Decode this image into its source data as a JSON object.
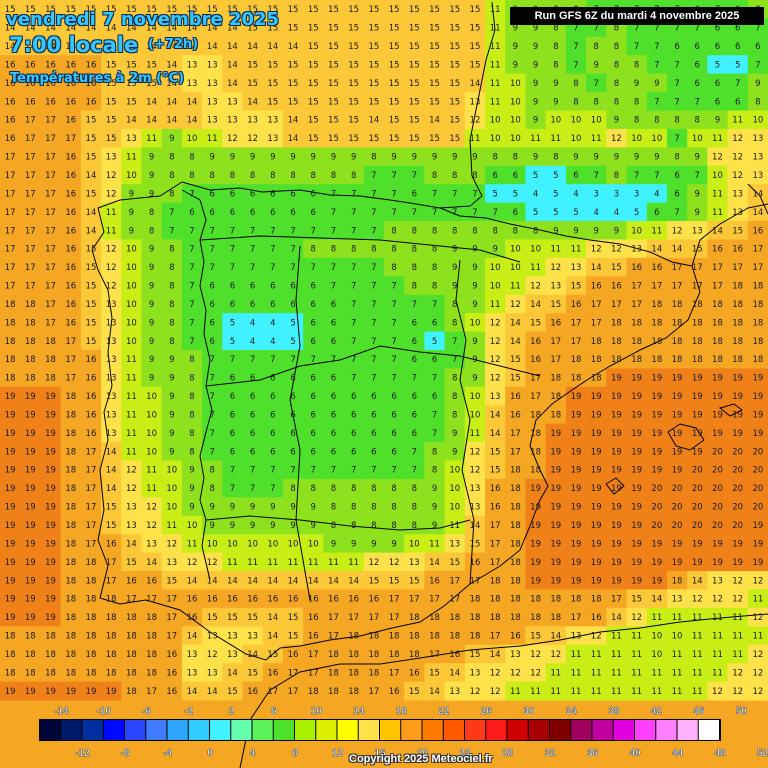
{
  "header": {
    "date": "vendredi 7 novembre 2025",
    "time": "7:00 locale",
    "offset": "(+72h)",
    "variable": "Températures à 2m (°C)"
  },
  "run_label": "Run GFS 6Z du mardi 4 novembre 2025",
  "copyright": "Copyright 2025 Meteociel.fr",
  "legend": {
    "top_labels": [
      "-14",
      "-10",
      "-6",
      "-2",
      "2",
      "6",
      "10",
      "14",
      "18",
      "22",
      "26",
      "30",
      "34",
      "38",
      "42",
      "46",
      "50"
    ],
    "bottom_labels": [
      "-12",
      "-8",
      "-4",
      "0",
      "4",
      "8",
      "12",
      "16",
      "20",
      "24",
      "28",
      "32",
      "36",
      "40",
      "44",
      "48",
      "52"
    ],
    "colors": [
      "#00063a",
      "#001a6b",
      "#00309f",
      "#0009ff",
      "#2b47ff",
      "#3f7cff",
      "#2fa6ff",
      "#30ccff",
      "#40f2ff",
      "#66ffb0",
      "#5bf25a",
      "#4fe02c",
      "#a8f000",
      "#dcf000",
      "#ffff00",
      "#ffe24a",
      "#ffc400",
      "#ff9c1a",
      "#ff7a00",
      "#ff5a00",
      "#ff3a1a",
      "#ff1a1a",
      "#d00000",
      "#a80000",
      "#800000",
      "#a00060",
      "#c000a0",
      "#e000e0",
      "#ff40ff",
      "#ff80ff",
      "#ffb0ff",
      "#ffffff"
    ]
  },
  "map": {
    "grid_cols": 38,
    "grid_rows": 38,
    "palette": {
      "sea_warm": "#f08018",
      "sea_mild": "#f5a623",
      "sea_cool": "#fcc838",
      "coast": "#ffe24a",
      "land_cold": "#4fe02c",
      "land_cool": "#8ee21d",
      "land_mild": "#c9ee16",
      "cold_spot": "#40f2ff",
      "border": "#000000"
    },
    "temperature_rows": [
      "15 15 15 15 15 15 15 15 15 15 15 15 15 15 15 15 15 15 15 15 15 15 15 15 11 9 9 8 8 7 7 7 7 7 6 7 6 8",
      "14 14 14 14 14 14 14 14 14 14 14 14 15 15 15 15 15 15 15 15 15 15 15 15 11 9 9 8 7 7 8 7 7 7 7 6 6 7",
      "14 14 14 14 14 14 14 14 14 14 14 14 14 14 14 15 15 15 15 15 15 15 15 15 11 9 9 8 7 8 8 7 7 6 6 6 6 6",
      "16 16 16 16 16 15 15 15 14 13 13 14 15 15 15 15 15 15 15 15 15 15 15 15 11 9 9 8 7 9 8 8 7 7 6 5 5 7",
      "16 16 16 16 16 15 15 15 14 13 13 14 15 15 15 15 15 15 15 15 15 15 15 14 11 10 9 9 8 7 8 9 9 7 6 6 7 9",
      "16 16 16 16 16 15 15 14 14 14 13 13 14 15 15 15 15 15 15 15 15 15 15 13 11 10 9 9 8 8 8 8 7 7 7 6 6 8",
      "16 17 17 16 15 15 14 14 14 14 13 13 13 13 14 15 15 15 14 15 15 14 15 12 10 10 9 10 10 10 9 8 8 8 8 9 11 10",
      "16 17 17 17 15 15 13 11 9 10 11 12 12 13 14 15 15 15 15 15 15 15 15 11 10 10 11 11 10 11 12 10 10 7 10 11 12 13",
      "17 17 17 16 15 13 11 9 8 8 9 9 9 9 9 9 9 9 8 9 9 9 9 9 8 8 9 8 9 9 9 9 9 8 9 12 12 13",
      "17 17 17 16 14 12 10 9 8 8 8 8 8 8 8 8 8 8 7 7 7 8 8 8 6 6 5 5 6 7 8 7 7 6 7 10 12 13",
      "17 17 17 16 15 12 9 9 8 7 6 6 6 6 6 6 7 7 7 7 6 7 7 7 5 5 4 5 4 3 3 3 4 6 9 11 13 14",
      "17 17 17 16 14 11 9 8 7 6 6 6 6 6 6 6 7 7 7 7 7 7 7 7 7 6 5 5 5 4 4 5 6 7 9 11 13 14",
      "17 17 17 16 14 11 9 8 7 7 7 7 7 7 7 7 7 7 7 8 8 8 8 8 8 8 8 9 9 9 9 10 11 12 13 14 15 16",
      "17 17 17 16 15 12 10 9 8 7 7 7 7 7 7 8 8 8 8 8 8 8 9 9 9 10 10 11 11 12 12 13 14 14 15 16 16 17",
      "17 17 17 16 15 12 10 9 8 7 7 7 7 7 7 7 7 7 7 8 8 8 9 9 10 10 11 12 13 14 15 16 16 17 17 17 17 17",
      "17 17 17 16 15 12 10 9 8 7 6 6 6 6 6 6 7 7 7 7 8 8 9 9 10 11 12 13 15 16 16 17 17 17 17 17 18 18",
      "18 18 17 16 15 13 10 9 8 7 6 6 6 6 6 6 6 7 7 7 7 7 8 9 11 12 14 15 16 17 17 17 18 18 18 18 18 18",
      "18 18 17 16 15 13 10 9 8 7 6 5 4 4 5 6 6 7 7 7 6 6 8 10 12 14 15 16 17 17 18 18 18 18 18 18 18 18",
      "18 18 18 17 15 13 10 9 8 7 6 5 4 4 5 6 6 7 7 7 6 5 7 9 12 14 16 17 17 18 18 18 18 18 18 18 18 18",
      "18 18 18 17 16 13 11 9 9 8 7 7 7 7 7 7 7 7 7 7 6 6 7 9 12 15 16 17 18 18 18 18 18 18 18 18 18 18",
      "18 18 18 17 16 13 11 9 9 8 7 6 6 6 6 6 6 7 7 7 7 7 8 9 12 15 17 18 18 18 19 19 19 19 19 19 19 19",
      "19 19 19 18 16 13 11 10 9 8 7 6 6 6 6 6 6 6 6 6 6 6 8 10 13 16 17 18 19 19 19 19 19 19 19 19 19 19",
      "19 19 19 18 16 13 11 10 9 8 7 6 6 6 6 6 6 6 6 6 6 7 8 10 14 16 18 18 19 19 19 19 19 19 19 19 19 19",
      "19 19 19 18 16 13 11 10 9 8 7 6 6 6 6 6 6 6 6 6 6 7 9 11 14 17 18 19 19 19 19 19 19 19 19 19 19 19",
      "19 19 19 18 17 14 11 10 9 8 7 6 6 6 6 6 6 6 6 6 7 8 9 12 15 17 18 19 19 19 19 19 19 19 19 20 20 20",
      "19 19 19 18 17 14 12 11 10 9 8 7 7 7 7 7 7 7 7 7 7 8 10 12 15 18 18 19 19 19 19 19 19 19 20 20 20 20",
      "19 19 19 18 17 14 12 11 10 9 8 7 7 7 8 8 8 8 8 8 8 9 10 13 16 18 19 19 19 19 19 19 20 20 20 20 20 20",
      "19 19 19 18 17 15 13 12 10 9 9 9 9 9 9 9 8 8 8 8 8 9 10 13 16 18 19 19 19 19 19 19 20 20 20 20 20 20",
      "19 19 19 18 17 15 13 12 11 10 9 9 9 9 9 9 8 8 8 8 8 9 11 14 17 18 19 19 19 19 19 19 20 20 20 20 20 19",
      "19 19 19 18 17 16 14 13 12 11 10 10 10 10 10 10 9 9 9 9 10 11 13 15 17 18 19 19 19 19 19 19 19 19 19 19 19 19",
      "19 19 19 18 18 17 15 14 13 12 12 11 11 11 11 11 11 11 12 12 13 14 15 16 17 18 19 19 19 19 19 19 19 19 19 19 19 19",
      "19 19 19 18 18 17 16 16 15 14 14 14 14 14 14 14 14 14 15 15 15 16 17 17 18 18 19 19 19 19 19 19 19 18 14 13 12 12",
      "19 19 19 18 18 18 17 17 17 16 16 16 16 16 16 16 16 16 16 17 17 17 17 18 18 18 18 18 18 18 17 15 14 13 12 12 12 11",
      "19 19 19 18 18 18 18 18 17 16 15 15 15 14 15 16 17 17 17 17 18 18 18 18 18 18 18 18 17 16 14 12 11 11 11 11 11 12",
      "18 18 18 18 18 18 18 18 17 14 13 13 13 14 15 16 17 18 18 18 18 18 18 18 17 16 15 14 13 12 11 11 10 10 11 11 11 11",
      "18 18 18 18 18 18 18 18 16 13 12 13 14 15 16 17 18 18 18 18 18 17 16 15 14 13 12 12 11 11 11 11 10 11 11 11 11 12",
      "18 18 18 18 18 18 18 18 16 13 13 14 15 16 17 17 18 18 18 17 16 15 14 13 12 12 12 11 11 11 11 11 11 11 11 11 12 12",
      "19 19 19 19 19 19 18 17 16 14 14 15 16 17 17 18 18 18 17 16 15 14 13 12 12 11 11 11 11 11 11 11 11 11 11 12 12 12"
    ]
  }
}
